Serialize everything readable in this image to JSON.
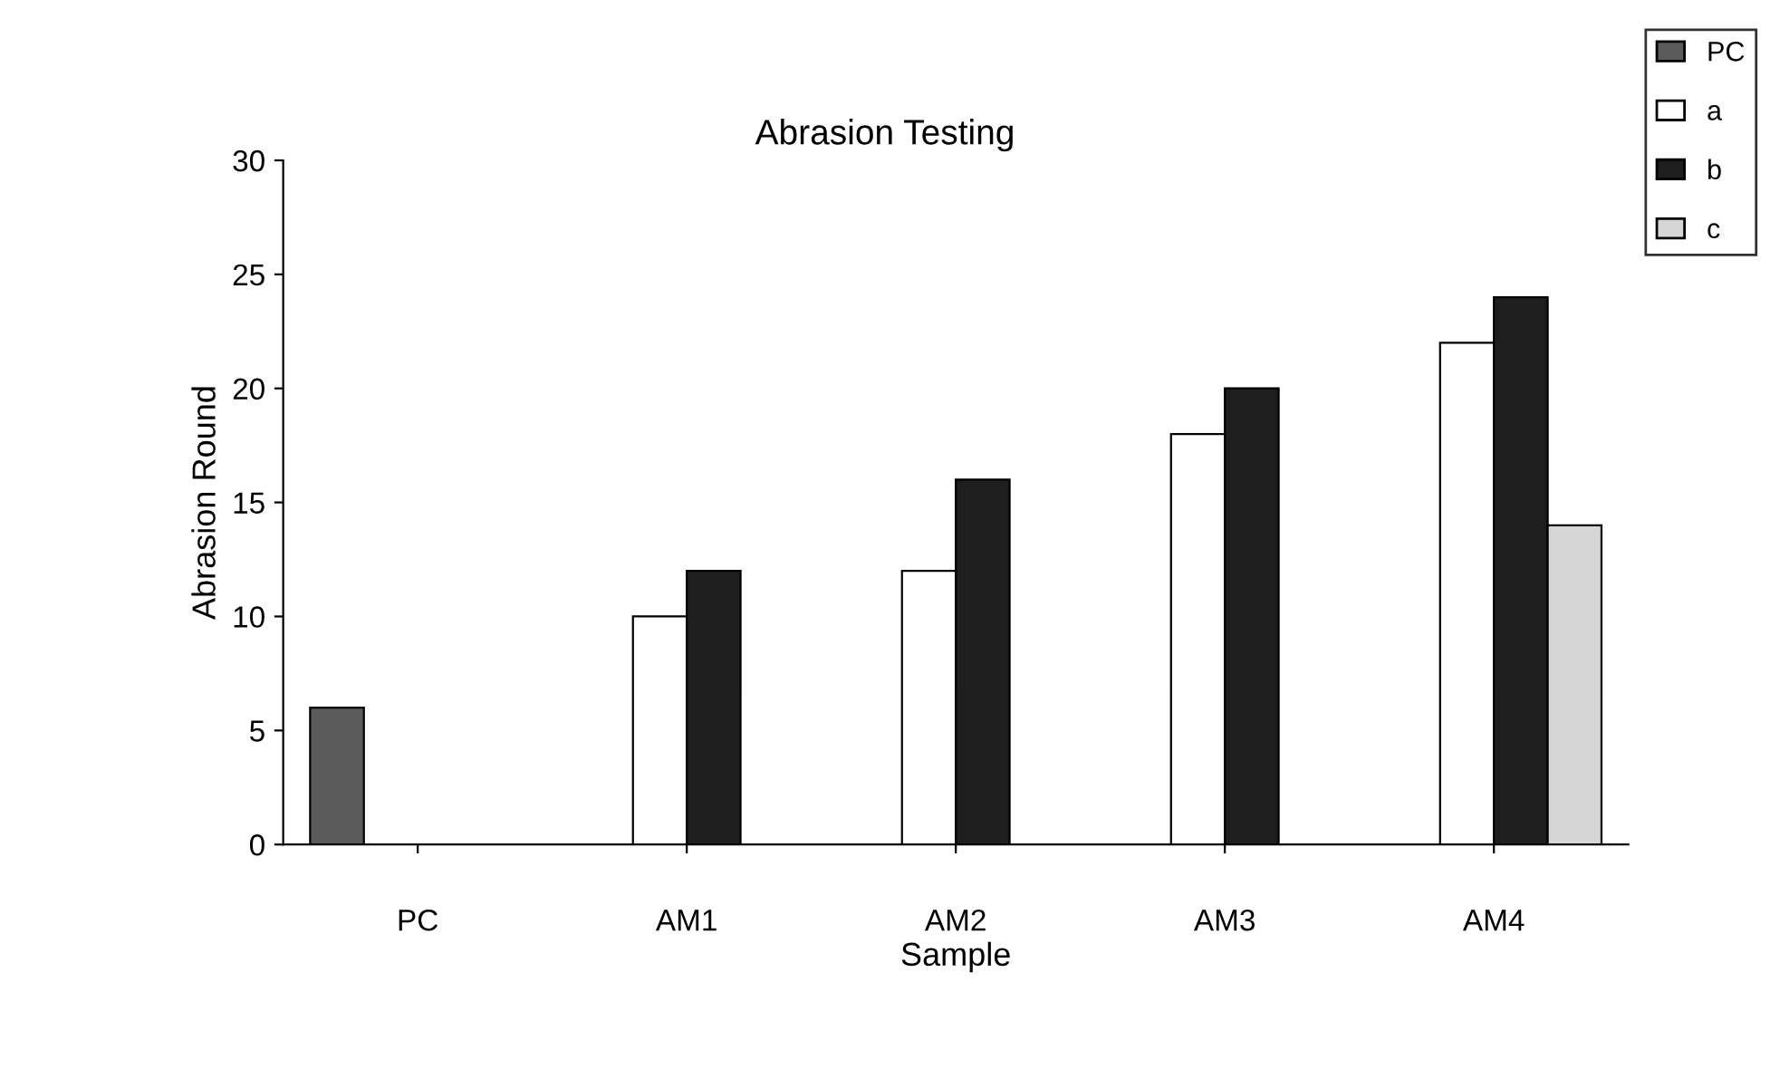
{
  "chart_data": {
    "type": "bar",
    "title": "Abrasion Testing",
    "xlabel": "Sample",
    "ylabel": "Abrasion Round",
    "categories": [
      "PC",
      "AM1",
      "AM2",
      "AM3",
      "AM4"
    ],
    "series": [
      {
        "name": "PC",
        "color": "#5a5a5a",
        "values": [
          6,
          null,
          null,
          null,
          null
        ]
      },
      {
        "name": "a",
        "color": "#ffffff",
        "values": [
          null,
          10,
          12,
          18,
          22
        ]
      },
      {
        "name": "b",
        "color": "#1e1e1e",
        "values": [
          null,
          12,
          16,
          20,
          24
        ]
      },
      {
        "name": "c",
        "color": "#d6d6d6",
        "values": [
          null,
          null,
          null,
          null,
          14
        ]
      }
    ],
    "ylim": [
      0,
      30
    ],
    "yticks": [
      0,
      5,
      10,
      15,
      20,
      25,
      30
    ],
    "grid": false,
    "legend": "top right"
  }
}
